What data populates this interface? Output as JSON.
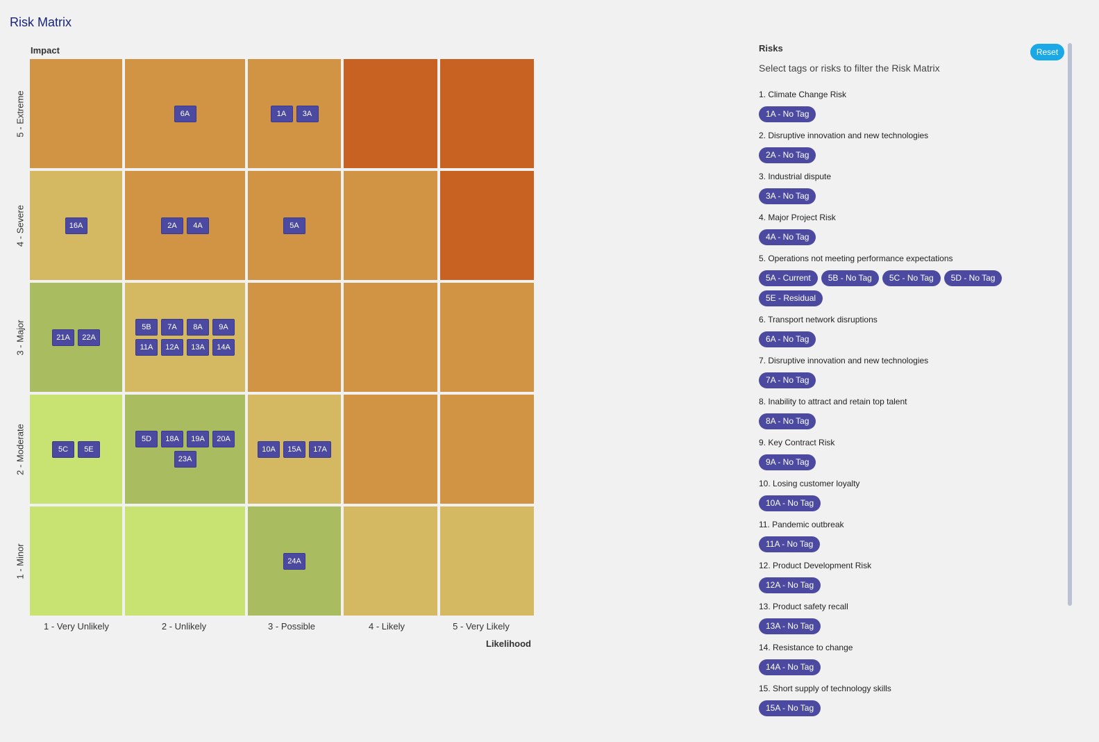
{
  "title": "Risk Matrix",
  "matrix": {
    "y_axis_label": "Impact",
    "x_axis_label": "Likelihood",
    "impact_levels": [
      "5 - Extreme",
      "4 - Severe",
      "3 - Major",
      "2 - Moderate",
      "1 - Minor"
    ],
    "likelihood_levels": [
      "1 - Very Unlikely",
      "2 - Unlikely",
      "3 - Possible",
      "4 - Likely",
      "5 - Very Likely"
    ],
    "colors": {
      "red": "#c86223",
      "orange": "#d09444",
      "yellow": "#d5b962",
      "olive": "#aabc60",
      "lime": "#c9e373"
    },
    "rows": [
      [
        {
          "color": "orange",
          "items": []
        },
        {
          "color": "orange",
          "items": [
            "6A"
          ]
        },
        {
          "color": "orange",
          "items": [
            "1A",
            "3A"
          ]
        },
        {
          "color": "red",
          "items": []
        },
        {
          "color": "red",
          "items": []
        }
      ],
      [
        {
          "color": "yellow",
          "items": [
            "16A"
          ]
        },
        {
          "color": "orange",
          "items": [
            "2A",
            "4A"
          ]
        },
        {
          "color": "orange",
          "items": [
            "5A"
          ]
        },
        {
          "color": "orange",
          "items": []
        },
        {
          "color": "red",
          "items": []
        }
      ],
      [
        {
          "color": "olive",
          "items": [
            "21A",
            "22A"
          ]
        },
        {
          "color": "yellow",
          "items": [
            "5B",
            "7A",
            "8A",
            "9A",
            "11A",
            "12A",
            "13A",
            "14A"
          ]
        },
        {
          "color": "orange",
          "items": []
        },
        {
          "color": "orange",
          "items": []
        },
        {
          "color": "orange",
          "items": []
        }
      ],
      [
        {
          "color": "lime",
          "items": [
            "5C",
            "5E"
          ]
        },
        {
          "color": "olive",
          "items": [
            "5D",
            "18A",
            "19A",
            "20A",
            "23A"
          ]
        },
        {
          "color": "yellow",
          "items": [
            "10A",
            "15A",
            "17A"
          ]
        },
        {
          "color": "orange",
          "items": []
        },
        {
          "color": "orange",
          "items": []
        }
      ],
      [
        {
          "color": "lime",
          "items": []
        },
        {
          "color": "lime",
          "items": []
        },
        {
          "color": "olive",
          "items": [
            "24A"
          ]
        },
        {
          "color": "yellow",
          "items": []
        },
        {
          "color": "yellow",
          "items": []
        }
      ]
    ]
  },
  "panel": {
    "title": "Risks",
    "reset_label": "Reset",
    "subtitle": "Select tags or risks to filter the Risk Matrix",
    "risks": [
      {
        "name": "1. Climate Change Risk",
        "tags": [
          "1A - No Tag"
        ]
      },
      {
        "name": "2. Disruptive innovation and new technologies",
        "tags": [
          "2A - No Tag"
        ]
      },
      {
        "name": "3. Industrial dispute",
        "tags": [
          "3A - No Tag"
        ]
      },
      {
        "name": "4. Major Project Risk",
        "tags": [
          "4A - No Tag"
        ]
      },
      {
        "name": "5. Operations not meeting performance expectations",
        "tags": [
          "5A - Current",
          "5B - No Tag",
          "5C - No Tag",
          "5D - No Tag",
          "5E - Residual"
        ]
      },
      {
        "name": "6. Transport network disruptions",
        "tags": [
          "6A - No Tag"
        ]
      },
      {
        "name": "7. Disruptive innovation and new technologies",
        "tags": [
          "7A - No Tag"
        ]
      },
      {
        "name": "8. Inability to attract and retain top talent",
        "tags": [
          "8A - No Tag"
        ]
      },
      {
        "name": "9. Key Contract Risk",
        "tags": [
          "9A - No Tag"
        ]
      },
      {
        "name": "10. Losing customer loyalty",
        "tags": [
          "10A - No Tag"
        ]
      },
      {
        "name": "11. Pandemic outbreak",
        "tags": [
          "11A - No Tag"
        ]
      },
      {
        "name": "12. Product Development Risk",
        "tags": [
          "12A - No Tag"
        ]
      },
      {
        "name": "13. Product safety recall",
        "tags": [
          "13A - No Tag"
        ]
      },
      {
        "name": "14. Resistance to change",
        "tags": [
          "14A - No Tag"
        ]
      },
      {
        "name": "15. Short supply of technology skills",
        "tags": [
          "15A - No Tag"
        ]
      }
    ]
  }
}
